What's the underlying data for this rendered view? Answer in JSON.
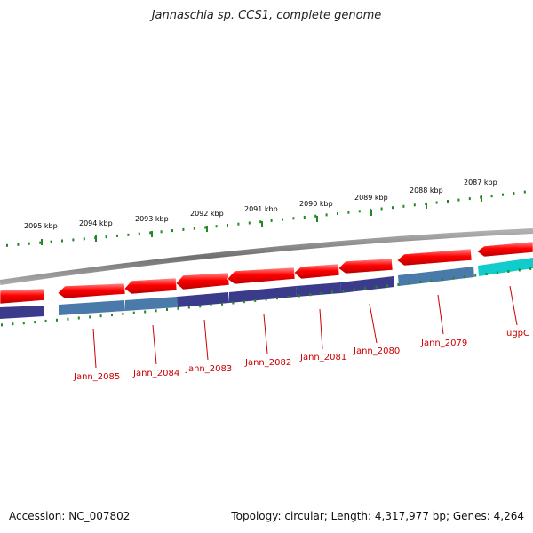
{
  "title": "Jannaschia sp. CCS1, complete genome",
  "footer": {
    "accession": "Accession: NC_007802",
    "summary": "Topology: circular; Length: 4,317,977 bp; Genes: 4,264"
  },
  "scale": {
    "unit": "kbp",
    "ticks": [
      {
        "value": 2095,
        "label": "2095 kbp"
      },
      {
        "value": 2094,
        "label": "2094 kbp"
      },
      {
        "value": 2093,
        "label": "2093 kbp"
      },
      {
        "value": 2092,
        "label": "2092 kbp"
      },
      {
        "value": 2091,
        "label": "2091 kbp"
      },
      {
        "value": 2090,
        "label": "2090 kbp"
      },
      {
        "value": 2089,
        "label": "2089 kbp"
      },
      {
        "value": 2088,
        "label": "2088 kbp"
      },
      {
        "value": 2087,
        "label": "2087 kbp"
      }
    ]
  },
  "genes": [
    {
      "label": "Jann_2085"
    },
    {
      "label": "Jann_2084"
    },
    {
      "label": "Jann_2083"
    },
    {
      "label": "Jann_2082"
    },
    {
      "label": "Jann_2081"
    },
    {
      "label": "Jann_2080"
    },
    {
      "label": "Jann_2079"
    },
    {
      "label": "ugpC"
    }
  ],
  "colors": {
    "backbone": "#808080",
    "gene_arrow": "#ee0000",
    "cog_track_purple": "#3b3b8c",
    "cog_track_blue": "#4a7aaa",
    "cog_track_cyan": "#11cccc",
    "tick": "#228822",
    "gene_label": "#cc0000"
  }
}
